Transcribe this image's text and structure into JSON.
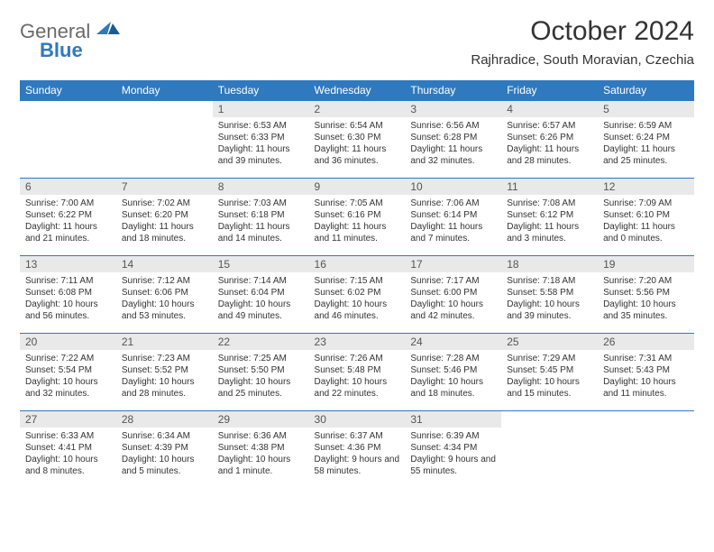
{
  "logo": {
    "general": "General",
    "blue": "Blue"
  },
  "header": {
    "title": "October 2024",
    "subtitle": "Rajhradice, South Moravian, Czechia"
  },
  "colors": {
    "brand": "#2f79bf",
    "daynum_bg": "#e9e9e9",
    "text": "#333333",
    "logo_gray": "#6a6a6a"
  },
  "weekdays": [
    "Sunday",
    "Monday",
    "Tuesday",
    "Wednesday",
    "Thursday",
    "Friday",
    "Saturday"
  ],
  "weeks": [
    [
      null,
      null,
      {
        "n": "1",
        "sr": "Sunrise: 6:53 AM",
        "ss": "Sunset: 6:33 PM",
        "dl": "Daylight: 11 hours and 39 minutes."
      },
      {
        "n": "2",
        "sr": "Sunrise: 6:54 AM",
        "ss": "Sunset: 6:30 PM",
        "dl": "Daylight: 11 hours and 36 minutes."
      },
      {
        "n": "3",
        "sr": "Sunrise: 6:56 AM",
        "ss": "Sunset: 6:28 PM",
        "dl": "Daylight: 11 hours and 32 minutes."
      },
      {
        "n": "4",
        "sr": "Sunrise: 6:57 AM",
        "ss": "Sunset: 6:26 PM",
        "dl": "Daylight: 11 hours and 28 minutes."
      },
      {
        "n": "5",
        "sr": "Sunrise: 6:59 AM",
        "ss": "Sunset: 6:24 PM",
        "dl": "Daylight: 11 hours and 25 minutes."
      }
    ],
    [
      {
        "n": "6",
        "sr": "Sunrise: 7:00 AM",
        "ss": "Sunset: 6:22 PM",
        "dl": "Daylight: 11 hours and 21 minutes."
      },
      {
        "n": "7",
        "sr": "Sunrise: 7:02 AM",
        "ss": "Sunset: 6:20 PM",
        "dl": "Daylight: 11 hours and 18 minutes."
      },
      {
        "n": "8",
        "sr": "Sunrise: 7:03 AM",
        "ss": "Sunset: 6:18 PM",
        "dl": "Daylight: 11 hours and 14 minutes."
      },
      {
        "n": "9",
        "sr": "Sunrise: 7:05 AM",
        "ss": "Sunset: 6:16 PM",
        "dl": "Daylight: 11 hours and 11 minutes."
      },
      {
        "n": "10",
        "sr": "Sunrise: 7:06 AM",
        "ss": "Sunset: 6:14 PM",
        "dl": "Daylight: 11 hours and 7 minutes."
      },
      {
        "n": "11",
        "sr": "Sunrise: 7:08 AM",
        "ss": "Sunset: 6:12 PM",
        "dl": "Daylight: 11 hours and 3 minutes."
      },
      {
        "n": "12",
        "sr": "Sunrise: 7:09 AM",
        "ss": "Sunset: 6:10 PM",
        "dl": "Daylight: 11 hours and 0 minutes."
      }
    ],
    [
      {
        "n": "13",
        "sr": "Sunrise: 7:11 AM",
        "ss": "Sunset: 6:08 PM",
        "dl": "Daylight: 10 hours and 56 minutes."
      },
      {
        "n": "14",
        "sr": "Sunrise: 7:12 AM",
        "ss": "Sunset: 6:06 PM",
        "dl": "Daylight: 10 hours and 53 minutes."
      },
      {
        "n": "15",
        "sr": "Sunrise: 7:14 AM",
        "ss": "Sunset: 6:04 PM",
        "dl": "Daylight: 10 hours and 49 minutes."
      },
      {
        "n": "16",
        "sr": "Sunrise: 7:15 AM",
        "ss": "Sunset: 6:02 PM",
        "dl": "Daylight: 10 hours and 46 minutes."
      },
      {
        "n": "17",
        "sr": "Sunrise: 7:17 AM",
        "ss": "Sunset: 6:00 PM",
        "dl": "Daylight: 10 hours and 42 minutes."
      },
      {
        "n": "18",
        "sr": "Sunrise: 7:18 AM",
        "ss": "Sunset: 5:58 PM",
        "dl": "Daylight: 10 hours and 39 minutes."
      },
      {
        "n": "19",
        "sr": "Sunrise: 7:20 AM",
        "ss": "Sunset: 5:56 PM",
        "dl": "Daylight: 10 hours and 35 minutes."
      }
    ],
    [
      {
        "n": "20",
        "sr": "Sunrise: 7:22 AM",
        "ss": "Sunset: 5:54 PM",
        "dl": "Daylight: 10 hours and 32 minutes."
      },
      {
        "n": "21",
        "sr": "Sunrise: 7:23 AM",
        "ss": "Sunset: 5:52 PM",
        "dl": "Daylight: 10 hours and 28 minutes."
      },
      {
        "n": "22",
        "sr": "Sunrise: 7:25 AM",
        "ss": "Sunset: 5:50 PM",
        "dl": "Daylight: 10 hours and 25 minutes."
      },
      {
        "n": "23",
        "sr": "Sunrise: 7:26 AM",
        "ss": "Sunset: 5:48 PM",
        "dl": "Daylight: 10 hours and 22 minutes."
      },
      {
        "n": "24",
        "sr": "Sunrise: 7:28 AM",
        "ss": "Sunset: 5:46 PM",
        "dl": "Daylight: 10 hours and 18 minutes."
      },
      {
        "n": "25",
        "sr": "Sunrise: 7:29 AM",
        "ss": "Sunset: 5:45 PM",
        "dl": "Daylight: 10 hours and 15 minutes."
      },
      {
        "n": "26",
        "sr": "Sunrise: 7:31 AM",
        "ss": "Sunset: 5:43 PM",
        "dl": "Daylight: 10 hours and 11 minutes."
      }
    ],
    [
      {
        "n": "27",
        "sr": "Sunrise: 6:33 AM",
        "ss": "Sunset: 4:41 PM",
        "dl": "Daylight: 10 hours and 8 minutes."
      },
      {
        "n": "28",
        "sr": "Sunrise: 6:34 AM",
        "ss": "Sunset: 4:39 PM",
        "dl": "Daylight: 10 hours and 5 minutes."
      },
      {
        "n": "29",
        "sr": "Sunrise: 6:36 AM",
        "ss": "Sunset: 4:38 PM",
        "dl": "Daylight: 10 hours and 1 minute."
      },
      {
        "n": "30",
        "sr": "Sunrise: 6:37 AM",
        "ss": "Sunset: 4:36 PM",
        "dl": "Daylight: 9 hours and 58 minutes."
      },
      {
        "n": "31",
        "sr": "Sunrise: 6:39 AM",
        "ss": "Sunset: 4:34 PM",
        "dl": "Daylight: 9 hours and 55 minutes."
      },
      null,
      null
    ]
  ]
}
